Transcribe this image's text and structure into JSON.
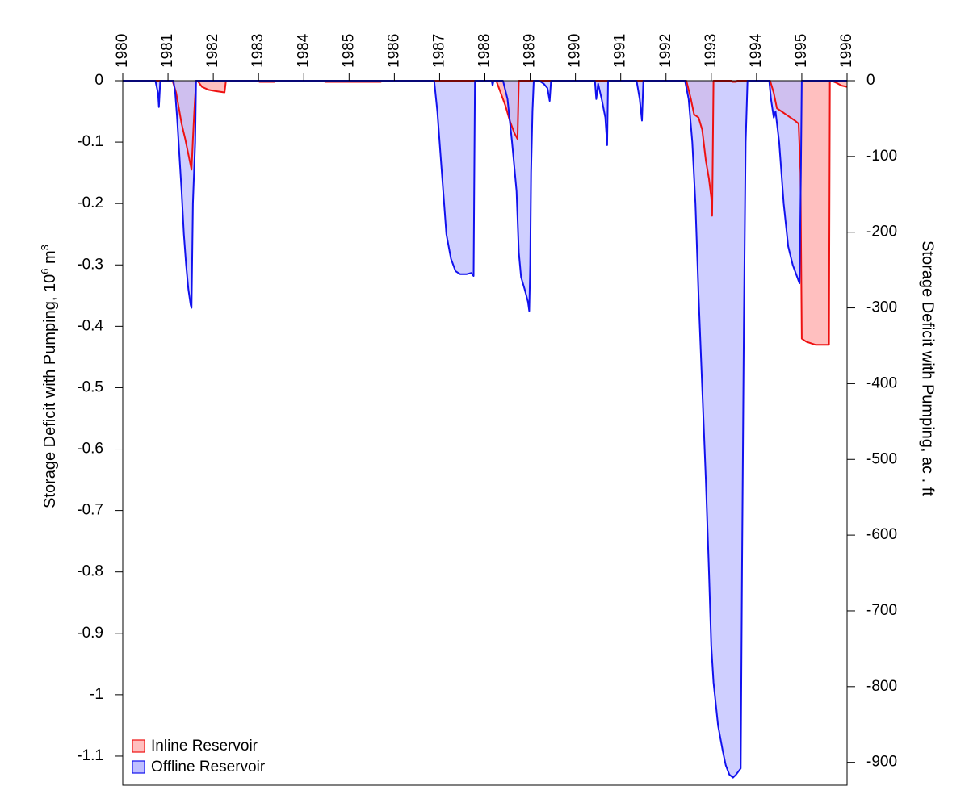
{
  "chart_data": {
    "type": "area",
    "x_axis": {
      "range": [
        1980.0,
        1996.0
      ],
      "ticks": [
        "1980",
        "1981",
        "1982",
        "1983",
        "1984",
        "1985",
        "1986",
        "1987",
        "1988",
        "1989",
        "1990",
        "1991",
        "1992",
        "1993",
        "1994",
        "1995",
        "1996"
      ],
      "label_position": "top"
    },
    "y_left": {
      "label": "Storage Deficit with Pumping, 10",
      "label_exponent": "6",
      "label_suffix": " m",
      "label_suffix_exponent": "3",
      "range": [
        -1.15,
        0
      ],
      "ticks": [
        "0",
        "-0.1",
        "-0.2",
        "-0.3",
        "-0.4",
        "-0.5",
        "-0.6",
        "-0.7",
        "-0.8",
        "-0.9",
        "-1",
        "-1.1"
      ]
    },
    "y_right": {
      "label": "Storage Deficit with Pumping, ac . ft",
      "ticks": [
        "0",
        "-100",
        "-200",
        "-300",
        "-400",
        "-500",
        "-600",
        "-700",
        "-800",
        "-900"
      ]
    },
    "legend": {
      "position": "bottom-left"
    },
    "series": [
      {
        "name": "Inline Reservoir",
        "fill": "#ffbfbf",
        "line": "#ee1111",
        "points": [
          [
            1980.0,
            0
          ],
          [
            1981.1,
            0
          ],
          [
            1981.18,
            -0.02
          ],
          [
            1981.3,
            -0.07
          ],
          [
            1981.38,
            -0.095
          ],
          [
            1981.45,
            -0.12
          ],
          [
            1981.52,
            -0.145
          ],
          [
            1981.55,
            -0.095
          ],
          [
            1981.58,
            -0.05
          ],
          [
            1981.62,
            0
          ],
          [
            1981.65,
            0
          ],
          [
            1981.75,
            -0.01
          ],
          [
            1981.9,
            -0.015
          ],
          [
            1982.05,
            -0.017
          ],
          [
            1982.25,
            -0.019
          ],
          [
            1982.28,
            0
          ],
          [
            1983.0,
            0
          ],
          [
            1983.02,
            -0.002
          ],
          [
            1983.35,
            -0.002
          ],
          [
            1983.38,
            0
          ],
          [
            1984.45,
            0
          ],
          [
            1984.47,
            -0.002
          ],
          [
            1985.7,
            -0.002
          ],
          [
            1985.72,
            0
          ],
          [
            1988.25,
            0
          ],
          [
            1988.35,
            -0.02
          ],
          [
            1988.45,
            -0.04
          ],
          [
            1988.55,
            -0.065
          ],
          [
            1988.65,
            -0.085
          ],
          [
            1988.72,
            -0.095
          ],
          [
            1988.75,
            0
          ],
          [
            1989.1,
            0
          ],
          [
            1992.45,
            0
          ],
          [
            1992.55,
            -0.03
          ],
          [
            1992.62,
            -0.055
          ],
          [
            1992.72,
            -0.06
          ],
          [
            1992.8,
            -0.08
          ],
          [
            1992.88,
            -0.13
          ],
          [
            1992.95,
            -0.16
          ],
          [
            1993.0,
            -0.19
          ],
          [
            1993.02,
            -0.22
          ],
          [
            1993.05,
            0
          ],
          [
            1993.45,
            0
          ],
          [
            1993.47,
            -0.002
          ],
          [
            1993.55,
            -0.002
          ],
          [
            1993.57,
            0
          ],
          [
            1994.3,
            0
          ],
          [
            1994.38,
            -0.02
          ],
          [
            1994.45,
            -0.045
          ],
          [
            1994.55,
            -0.05
          ],
          [
            1994.65,
            -0.055
          ],
          [
            1994.75,
            -0.06
          ],
          [
            1994.85,
            -0.065
          ],
          [
            1994.93,
            -0.07
          ],
          [
            1994.97,
            -0.15
          ],
          [
            1995.0,
            -0.42
          ],
          [
            1995.1,
            -0.425
          ],
          [
            1995.3,
            -0.43
          ],
          [
            1995.5,
            -0.43
          ],
          [
            1995.6,
            -0.43
          ],
          [
            1995.62,
            0
          ],
          [
            1995.65,
            0
          ],
          [
            1995.75,
            -0.003
          ],
          [
            1995.88,
            -0.008
          ],
          [
            1996.0,
            -0.01
          ]
        ]
      },
      {
        "name": "Offline Reservoir",
        "fill": "#bfbfff",
        "line": "#1111ee",
        "points": [
          [
            1980.0,
            0
          ],
          [
            1980.72,
            0
          ],
          [
            1980.78,
            -0.02
          ],
          [
            1980.8,
            -0.043
          ],
          [
            1980.83,
            0
          ],
          [
            1981.12,
            0
          ],
          [
            1981.16,
            -0.02
          ],
          [
            1981.2,
            -0.06
          ],
          [
            1981.25,
            -0.12
          ],
          [
            1981.3,
            -0.18
          ],
          [
            1981.35,
            -0.25
          ],
          [
            1981.4,
            -0.3
          ],
          [
            1981.45,
            -0.34
          ],
          [
            1981.5,
            -0.365
          ],
          [
            1981.52,
            -0.37
          ],
          [
            1981.55,
            -0.2
          ],
          [
            1981.6,
            -0.1
          ],
          [
            1981.62,
            0
          ],
          [
            1986.88,
            0
          ],
          [
            1986.95,
            -0.05
          ],
          [
            1987.05,
            -0.15
          ],
          [
            1987.15,
            -0.25
          ],
          [
            1987.25,
            -0.29
          ],
          [
            1987.35,
            -0.31
          ],
          [
            1987.45,
            -0.315
          ],
          [
            1987.6,
            -0.315
          ],
          [
            1987.7,
            -0.313
          ],
          [
            1987.75,
            -0.318
          ],
          [
            1987.78,
            0
          ],
          [
            1988.15,
            0
          ],
          [
            1988.17,
            -0.008
          ],
          [
            1988.19,
            0
          ],
          [
            1988.4,
            0
          ],
          [
            1988.5,
            -0.03
          ],
          [
            1988.6,
            -0.1
          ],
          [
            1988.7,
            -0.18
          ],
          [
            1988.75,
            -0.28
          ],
          [
            1988.8,
            -0.32
          ],
          [
            1988.88,
            -0.34
          ],
          [
            1988.95,
            -0.36
          ],
          [
            1988.98,
            -0.375
          ],
          [
            1989.0,
            -0.3
          ],
          [
            1989.02,
            -0.15
          ],
          [
            1989.05,
            -0.05
          ],
          [
            1989.08,
            0
          ],
          [
            1989.2,
            0
          ],
          [
            1989.3,
            -0.005
          ],
          [
            1989.38,
            -0.012
          ],
          [
            1989.43,
            -0.033
          ],
          [
            1989.46,
            0
          ],
          [
            1990.43,
            0
          ],
          [
            1990.46,
            -0.03
          ],
          [
            1990.5,
            -0.005
          ],
          [
            1990.58,
            -0.03
          ],
          [
            1990.66,
            -0.06
          ],
          [
            1990.7,
            -0.105
          ],
          [
            1990.72,
            0
          ],
          [
            1991.35,
            0
          ],
          [
            1991.42,
            -0.03
          ],
          [
            1991.47,
            -0.065
          ],
          [
            1991.5,
            0
          ],
          [
            1992.42,
            0
          ],
          [
            1992.5,
            -0.03
          ],
          [
            1992.58,
            -0.1
          ],
          [
            1992.65,
            -0.2
          ],
          [
            1992.72,
            -0.35
          ],
          [
            1992.8,
            -0.5
          ],
          [
            1992.88,
            -0.65
          ],
          [
            1992.95,
            -0.8
          ],
          [
            1993.0,
            -0.92
          ],
          [
            1993.05,
            -0.98
          ],
          [
            1993.15,
            -1.05
          ],
          [
            1993.25,
            -1.09
          ],
          [
            1993.32,
            -1.115
          ],
          [
            1993.4,
            -1.13
          ],
          [
            1993.48,
            -1.135
          ],
          [
            1993.55,
            -1.13
          ],
          [
            1993.65,
            -1.12
          ],
          [
            1993.68,
            -0.8
          ],
          [
            1993.72,
            -0.4
          ],
          [
            1993.76,
            -0.1
          ],
          [
            1993.8,
            0
          ],
          [
            1994.28,
            0
          ],
          [
            1994.32,
            -0.03
          ],
          [
            1994.38,
            -0.06
          ],
          [
            1994.42,
            -0.05
          ],
          [
            1994.5,
            -0.1
          ],
          [
            1994.6,
            -0.2
          ],
          [
            1994.7,
            -0.27
          ],
          [
            1994.8,
            -0.3
          ],
          [
            1994.9,
            -0.32
          ],
          [
            1994.95,
            -0.33
          ],
          [
            1994.98,
            -0.15
          ],
          [
            1995.0,
            0
          ],
          [
            1996.0,
            0
          ]
        ]
      }
    ]
  }
}
